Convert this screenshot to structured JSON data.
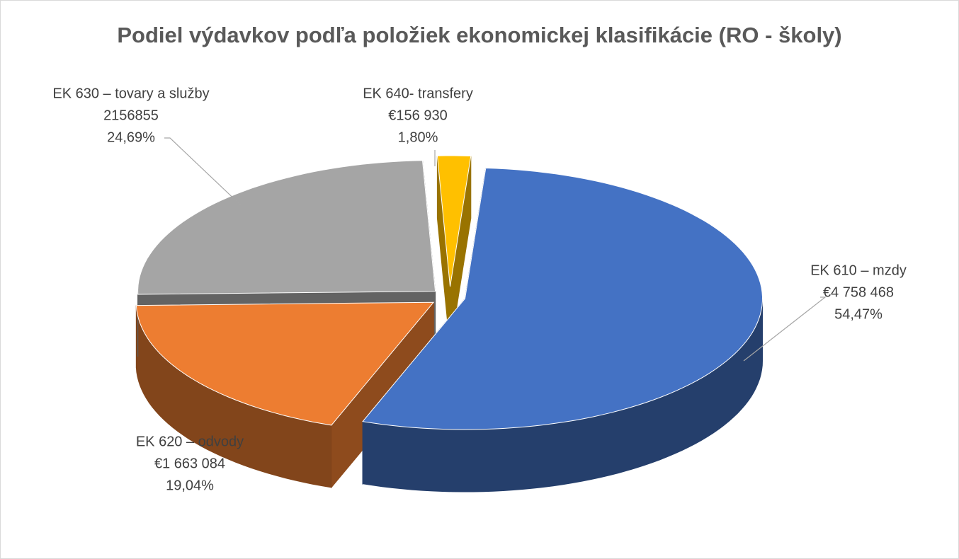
{
  "chart_data": {
    "type": "pie",
    "title": "Podiel výdavkov podľa položiek ekonomickej klasifikácie (RO - školy)",
    "categories": [
      "EK 610 – mzdy",
      "EK 620 – odvody",
      "EK 630 – tovary a služby",
      "EK 640- transfery"
    ],
    "values": [
      4758468,
      1663084,
      2156855,
      156930
    ],
    "value_labels": [
      "€4 758 468",
      "€1 663 084",
      "2156855",
      "€156 930"
    ],
    "percent_labels": [
      "54,47%",
      "19,04%",
      "24,69%",
      "1,80%"
    ],
    "colors": [
      "#4472c4",
      "#ed7d31",
      "#a5a5a5",
      "#ffc000"
    ]
  }
}
